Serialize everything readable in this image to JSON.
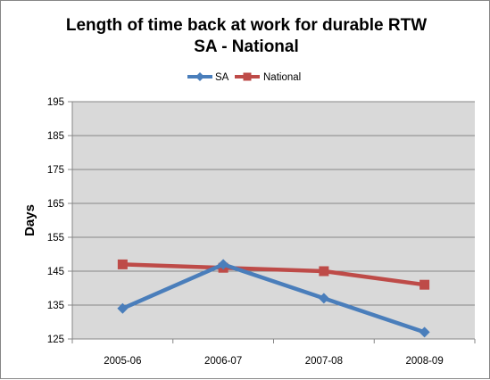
{
  "chart_data": {
    "type": "line",
    "title_lines": [
      "Length of time back at work for durable RTW",
      "SA - National"
    ],
    "xlabel": "",
    "ylabel": "Days",
    "categories": [
      "2005-06",
      "2006-07",
      "2007-08",
      "2008-09"
    ],
    "ylim": [
      125,
      195
    ],
    "yticks": [
      125,
      135,
      145,
      155,
      165,
      175,
      185,
      195
    ],
    "grid": true,
    "legend_position": "top",
    "plot_background": "#d9d9d9",
    "series": [
      {
        "name": "SA",
        "values": [
          134,
          147,
          137,
          127
        ],
        "color": "#4a7ebb",
        "marker": "diamond"
      },
      {
        "name": "National",
        "values": [
          147,
          146,
          145,
          141
        ],
        "color": "#be4b48",
        "marker": "square"
      }
    ]
  }
}
